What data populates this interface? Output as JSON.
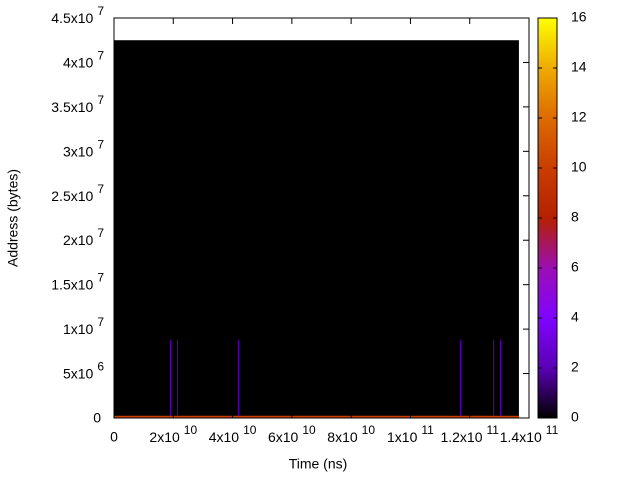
{
  "chart_data": {
    "type": "heatmap",
    "xlabel": "Time (ns)",
    "ylabel": "Address (bytes)",
    "xlim": [
      0,
      140000000000
    ],
    "ylim": [
      0,
      45000000
    ],
    "cblim": [
      0,
      16
    ],
    "xticks": [
      0,
      {
        "value": 20000000000,
        "label": [
          "2x10",
          "10"
        ]
      },
      {
        "value": 40000000000,
        "label": [
          "4x10",
          "10"
        ]
      },
      {
        "value": 60000000000,
        "label": [
          "6x10",
          "10"
        ]
      },
      {
        "value": 80000000000,
        "label": [
          "8x10",
          "10"
        ]
      },
      {
        "value": 100000000000,
        "label": [
          "1x10",
          "11"
        ]
      },
      {
        "value": 120000000000,
        "label": [
          "1.2x10",
          "11"
        ]
      },
      {
        "value": 140000000000,
        "label": [
          "1.4x10",
          "11"
        ]
      }
    ],
    "yticks": [
      0,
      {
        "value": 5000000,
        "label": [
          "5x10",
          "6"
        ]
      },
      {
        "value": 10000000,
        "label": [
          "1x10",
          "7"
        ]
      },
      {
        "value": 15000000,
        "label": [
          "1.5x10",
          "7"
        ]
      },
      {
        "value": 20000000,
        "label": [
          "2x10",
          "7"
        ]
      },
      {
        "value": 25000000,
        "label": [
          "2.5x10",
          "7"
        ]
      },
      {
        "value": 30000000,
        "label": [
          "3x10",
          "7"
        ]
      },
      {
        "value": 35000000,
        "label": [
          "3.5x10",
          "7"
        ]
      },
      {
        "value": 40000000,
        "label": [
          "4x10",
          "7"
        ]
      },
      {
        "value": 45000000,
        "label": [
          "4.5x10",
          "7"
        ]
      }
    ],
    "cbticks": [
      0,
      2,
      4,
      6,
      8,
      10,
      12,
      14,
      16
    ],
    "palette": [
      "#000000",
      "#5a00b4",
      "#8004ff",
      "#9c0eb4",
      "#b42000",
      "#c93e00",
      "#dd6b00",
      "#eeab00",
      "#ffff00"
    ],
    "cells": [
      {
        "x": [
          0,
          136600000000
        ],
        "y": [
          0,
          42500000
        ],
        "value": 0
      },
      {
        "x": [
          0,
          136600000000
        ],
        "y": [
          0,
          250000
        ],
        "value": 10
      },
      {
        "x": [
          18900000000,
          19200000000
        ],
        "y": [
          250000,
          8800000
        ],
        "value": 2
      },
      {
        "x": [
          21200000000,
          21500000000
        ],
        "y": [
          250000,
          8800000
        ],
        "value": 2
      },
      {
        "x": [
          41800000000,
          42100000000
        ],
        "y": [
          250000,
          8800000
        ],
        "value": 2
      },
      {
        "x": [
          116700000000,
          117000000000
        ],
        "y": [
          250000,
          8800000
        ],
        "value": 2
      },
      {
        "x": [
          127900000000,
          128200000000
        ],
        "y": [
          250000,
          8800000
        ],
        "value": 2
      },
      {
        "x": [
          130200000000,
          130500000000
        ],
        "y": [
          250000,
          8800000
        ],
        "value": 2
      }
    ]
  }
}
